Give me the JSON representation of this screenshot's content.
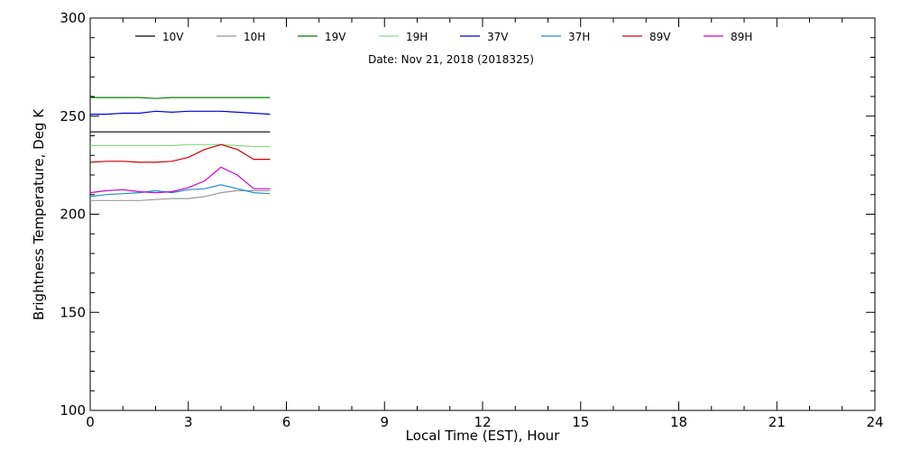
{
  "chart_data": {
    "type": "line",
    "xlabel": "Local Time (EST), Hour",
    "ylabel": "Brightness Temperature, Deg K",
    "annotation": "Date: Nov 21, 2018 (2018325)",
    "xlim": [
      0,
      24
    ],
    "ylim": [
      100,
      300
    ],
    "xticks": [
      0,
      3,
      6,
      9,
      12,
      15,
      18,
      21,
      24
    ],
    "yticks": [
      100,
      150,
      200,
      250,
      300
    ],
    "grid": false,
    "legend_position": "top",
    "x": [
      0,
      0.5,
      1,
      1.5,
      2,
      2.5,
      3,
      3.5,
      4,
      4.5,
      5,
      5.5
    ],
    "series": [
      {
        "name": "10V",
        "color": "#000000",
        "values": [
          242,
          242,
          242,
          242,
          242,
          242,
          242,
          242,
          242,
          242,
          242,
          242
        ]
      },
      {
        "name": "10H",
        "color": "#999999",
        "values": [
          207,
          207,
          207,
          207,
          207.5,
          208,
          208,
          209,
          211,
          212,
          212,
          212
        ]
      },
      {
        "name": "19V",
        "color": "#008000",
        "values": [
          259.5,
          259.5,
          259.5,
          259.5,
          259,
          259.5,
          259.5,
          259.5,
          259.5,
          259.5,
          259.5,
          259.5
        ]
      },
      {
        "name": "19H",
        "color": "#80e080",
        "values": [
          235,
          235,
          235,
          235,
          235,
          235,
          235.5,
          235.5,
          235.5,
          235,
          234.5,
          234.5
        ]
      },
      {
        "name": "37V",
        "color": "#0000cc",
        "values": [
          251,
          251,
          251.5,
          251.5,
          252.5,
          252,
          252.5,
          252.5,
          252.5,
          252,
          251.5,
          251
        ]
      },
      {
        "name": "37H",
        "color": "#1e90c8",
        "values": [
          209,
          210,
          210.5,
          211,
          212,
          211,
          212.5,
          213,
          215,
          213,
          211,
          210.5
        ]
      },
      {
        "name": "89V",
        "color": "#cc0000",
        "values": [
          226.5,
          227,
          227,
          226.5,
          226.5,
          227,
          229,
          233,
          235.5,
          233,
          228,
          228
        ]
      },
      {
        "name": "89H",
        "color": "#cc00cc",
        "values": [
          211,
          212,
          212.5,
          211.5,
          211,
          211.5,
          213.5,
          217,
          224,
          220,
          213,
          213
        ]
      }
    ]
  }
}
